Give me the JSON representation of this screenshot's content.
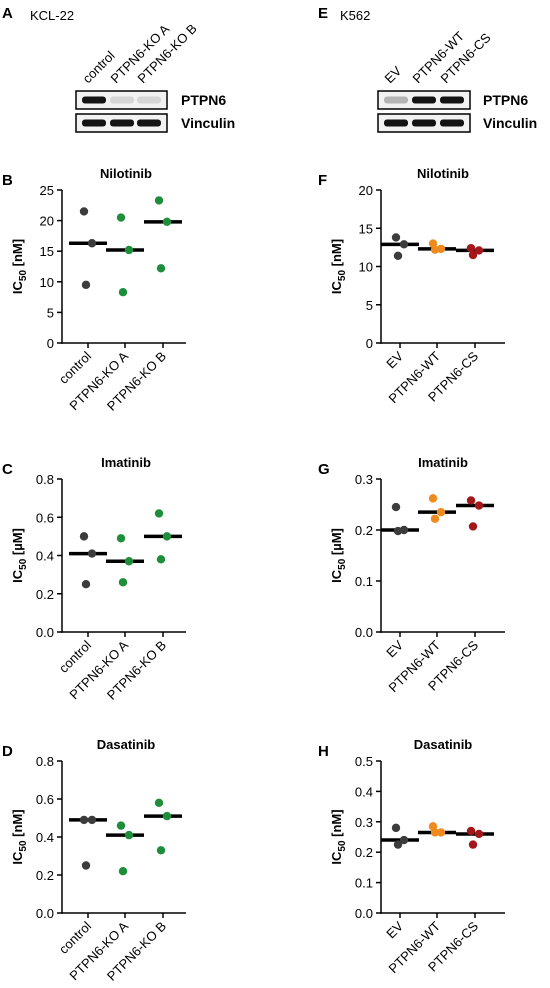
{
  "blots": [
    {
      "panel_letter": "A",
      "cell_line": "KCL-22",
      "lanes": [
        "control",
        "PTPN6-KO A",
        "PTPN6-KO B"
      ],
      "bands": [
        {
          "label": "PTPN6",
          "intensity": [
            1.0,
            0.1,
            0.1
          ]
        },
        {
          "label": "Vinculin",
          "intensity": [
            1.0,
            1.0,
            1.0
          ]
        }
      ]
    },
    {
      "panel_letter": "E",
      "cell_line": "K562",
      "lanes": [
        "EV",
        "PTPN6-WT",
        "PTPN6-CS"
      ],
      "bands": [
        {
          "label": "PTPN6",
          "intensity": [
            0.25,
            1.0,
            1.0
          ]
        },
        {
          "label": "Vinculin",
          "intensity": [
            1.0,
            1.0,
            1.0
          ]
        }
      ]
    }
  ],
  "colors": {
    "control": "#3c3c3c",
    "ko": "#1f8e3a",
    "ev": "#3c3c3c",
    "wt": "#ef8a1f",
    "cs": "#a3171b",
    "bar": "#000000",
    "axis": "#000000"
  },
  "chart_data": [
    {
      "type": "scatter",
      "panel_letter": "B",
      "title": "Nilotinib",
      "ylabel_main": "IC",
      "ylabel_sub": "50",
      "ylabel_unit": " [nM]",
      "ylim": [
        0,
        25
      ],
      "yticks": [
        0,
        5,
        10,
        15,
        20,
        25
      ],
      "categories": [
        "control",
        "PTPN6-KO A",
        "PTPN6-KO B"
      ],
      "series": [
        {
          "values": [
            21.5,
            16.3,
            9.5
          ],
          "median": 16.3,
          "color_key": "control"
        },
        {
          "values": [
            20.5,
            15.2,
            8.3
          ],
          "median": 15.2,
          "color_key": "ko"
        },
        {
          "values": [
            23.3,
            19.8,
            12.2
          ],
          "median": 19.8,
          "color_key": "ko"
        }
      ]
    },
    {
      "type": "scatter",
      "panel_letter": "C",
      "title": "Imatinib",
      "ylabel_main": "IC",
      "ylabel_sub": "50",
      "ylabel_unit": " [µM]",
      "ylim": [
        0,
        0.8
      ],
      "yticks": [
        0.0,
        0.2,
        0.4,
        0.6,
        0.8
      ],
      "categories": [
        "control",
        "PTPN6-KO A",
        "PTPN6-KO B"
      ],
      "series": [
        {
          "values": [
            0.5,
            0.41,
            0.25
          ],
          "median": 0.41,
          "color_key": "control"
        },
        {
          "values": [
            0.49,
            0.37,
            0.26
          ],
          "median": 0.37,
          "color_key": "ko"
        },
        {
          "values": [
            0.62,
            0.5,
            0.38
          ],
          "median": 0.5,
          "color_key": "ko"
        }
      ]
    },
    {
      "type": "scatter",
      "panel_letter": "D",
      "title": "Dasatinib",
      "ylabel_main": "IC",
      "ylabel_sub": "50",
      "ylabel_unit": " [nM]",
      "ylim": [
        0,
        0.8
      ],
      "yticks": [
        0.0,
        0.2,
        0.4,
        0.6,
        0.8
      ],
      "categories": [
        "control",
        "PTPN6-KO A",
        "PTPN6-KO B"
      ],
      "series": [
        {
          "values": [
            0.49,
            0.49,
            0.25
          ],
          "median": 0.49,
          "color_key": "control"
        },
        {
          "values": [
            0.46,
            0.41,
            0.22
          ],
          "median": 0.41,
          "color_key": "ko"
        },
        {
          "values": [
            0.58,
            0.51,
            0.33
          ],
          "median": 0.51,
          "color_key": "ko"
        }
      ]
    },
    {
      "type": "scatter",
      "panel_letter": "F",
      "title": "Nilotinib",
      "ylabel_main": "IC",
      "ylabel_sub": "50",
      "ylabel_unit": " [nM]",
      "ylim": [
        0,
        20
      ],
      "yticks": [
        0,
        5,
        10,
        15,
        20
      ],
      "categories": [
        "EV",
        "PTPN6-WT",
        "PTPN6-CS"
      ],
      "series": [
        {
          "values": [
            13.8,
            12.9,
            11.4
          ],
          "median": 12.9,
          "color_key": "ev"
        },
        {
          "values": [
            13.0,
            12.3,
            12.2
          ],
          "median": 12.3,
          "color_key": "wt"
        },
        {
          "values": [
            12.4,
            12.1,
            11.5
          ],
          "median": 12.1,
          "color_key": "cs"
        }
      ]
    },
    {
      "type": "scatter",
      "panel_letter": "G",
      "title": "Imatinib",
      "ylabel_main": "IC",
      "ylabel_sub": "50",
      "ylabel_unit": " [µM]",
      "ylim": [
        0,
        0.3
      ],
      "yticks": [
        0.0,
        0.1,
        0.2,
        0.3
      ],
      "categories": [
        "EV",
        "PTPN6-WT",
        "PTPN6-CS"
      ],
      "series": [
        {
          "values": [
            0.245,
            0.2,
            0.198
          ],
          "median": 0.2,
          "color_key": "ev"
        },
        {
          "values": [
            0.262,
            0.235,
            0.222
          ],
          "median": 0.235,
          "color_key": "wt"
        },
        {
          "values": [
            0.258,
            0.248,
            0.207
          ],
          "median": 0.248,
          "color_key": "cs"
        }
      ]
    },
    {
      "type": "scatter",
      "panel_letter": "H",
      "title": "Dasatinib",
      "ylabel_main": "IC",
      "ylabel_sub": "50",
      "ylabel_unit": " [nM]",
      "ylim": [
        0,
        0.5
      ],
      "yticks": [
        0.0,
        0.1,
        0.2,
        0.3,
        0.4,
        0.5
      ],
      "categories": [
        "EV",
        "PTPN6-WT",
        "PTPN6-CS"
      ],
      "series": [
        {
          "values": [
            0.28,
            0.24,
            0.225
          ],
          "median": 0.24,
          "color_key": "ev"
        },
        {
          "values": [
            0.285,
            0.265,
            0.265
          ],
          "median": 0.265,
          "color_key": "wt"
        },
        {
          "values": [
            0.27,
            0.26,
            0.225
          ],
          "median": 0.26,
          "color_key": "cs"
        }
      ]
    }
  ]
}
